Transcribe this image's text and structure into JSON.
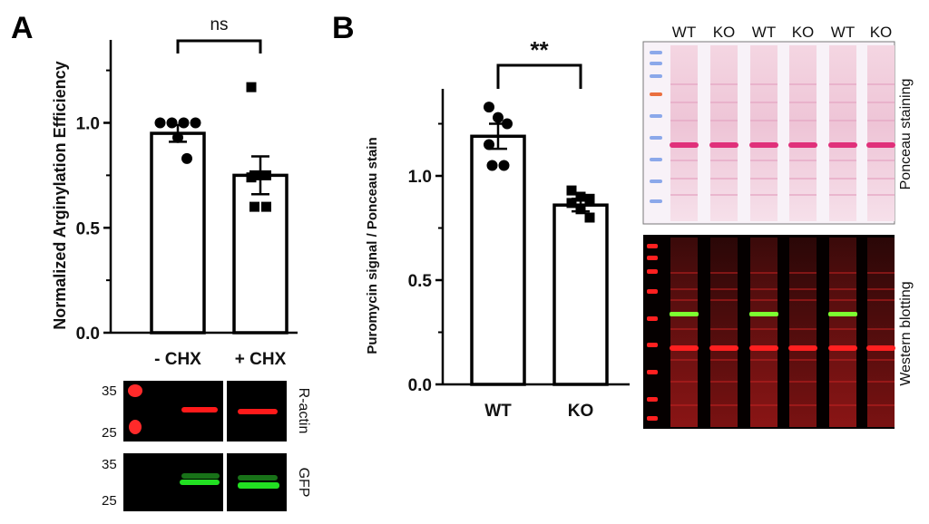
{
  "panels": {
    "a": "A",
    "b": "B"
  },
  "chart_data": [
    {
      "type": "bar",
      "panel": "A",
      "ylabel": "Normalized Arginylation Efficiency",
      "categories": [
        "- CHX",
        "+ CHX"
      ],
      "values": [
        0.95,
        0.75
      ],
      "sem": [
        0.04,
        0.09
      ],
      "points": [
        [
          1.0,
          1.0,
          1.0,
          1.0,
          0.93,
          0.83
        ],
        [
          1.17,
          0.75,
          0.75,
          0.74,
          0.6,
          0.6
        ]
      ],
      "point_markers": [
        "circle",
        "square"
      ],
      "yticks": [
        0.0,
        0.5,
        1.0
      ],
      "ytick_labels": [
        "0.0",
        "0.5",
        "1.0"
      ],
      "ylim": [
        0,
        1.45
      ],
      "significance": "ns"
    },
    {
      "type": "bar",
      "panel": "B",
      "ylabel": "Puromycin signal / Ponceau stain",
      "categories": [
        "WT",
        "KO"
      ],
      "values": [
        1.19,
        0.86
      ],
      "sem": [
        0.06,
        0.03
      ],
      "points": [
        [
          1.33,
          1.28,
          1.25,
          1.15,
          1.05,
          1.05
        ],
        [
          0.93,
          0.9,
          0.89,
          0.87,
          0.84,
          0.8
        ]
      ],
      "point_markers": [
        "circle",
        "square"
      ],
      "yticks": [
        0.0,
        0.5,
        1.0
      ],
      "ytick_labels": [
        "0.0",
        "0.5",
        "1.0"
      ],
      "ylim": [
        0,
        1.4
      ],
      "significance": "**"
    }
  ],
  "blots": {
    "ractin": {
      "label": "R-actin",
      "marker_high": "35",
      "marker_low": "25"
    },
    "gfp": {
      "label": "GFP",
      "marker_high": "35",
      "marker_low": "25"
    },
    "ponceau": {
      "label": "Ponceau staining",
      "lanes": [
        "WT",
        "KO",
        "WT",
        "KO",
        "WT",
        "KO"
      ]
    },
    "western": {
      "label": "Western blotting"
    }
  },
  "colors": {
    "ractin_band": "#ff1a1a",
    "gfp_band": "#22e022",
    "ponceau_band": "#e0307a",
    "western_red": "#ff2020",
    "western_green": "#7dff30"
  }
}
